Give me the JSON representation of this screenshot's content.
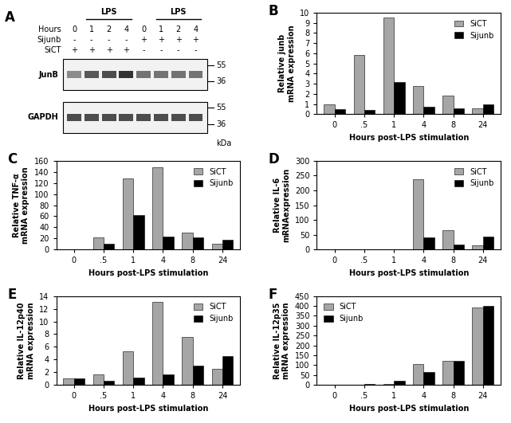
{
  "blot": {
    "panel_label": "A",
    "treatment": "LPS",
    "rows": [
      {
        "label": "Hours",
        "values": [
          "0",
          "1",
          "2",
          "4",
          "0",
          "1",
          "2",
          "4"
        ]
      },
      {
        "label": "Sijunb",
        "values": [
          "-",
          "-",
          "-",
          "-",
          "+",
          "+",
          "+",
          "+"
        ]
      },
      {
        "label": "SiCT",
        "values": [
          "+",
          "+",
          "+",
          "+",
          "-",
          "-",
          "-",
          "-"
        ]
      }
    ],
    "bands": [
      {
        "label": "JunB",
        "markers": [
          55,
          36
        ]
      },
      {
        "label": "GAPDH",
        "markers": [
          55,
          36
        ]
      }
    ],
    "unit": "kDa"
  },
  "chart_data": [
    {
      "type": "bar",
      "panel_label": "B",
      "y_label": "Relative junb\nmRNA expression",
      "x_label": "Hours post-LPS stimulation",
      "categories": [
        "0",
        ".5",
        "1",
        "4",
        "8",
        "24"
      ],
      "series": [
        {
          "name": "SiCT",
          "color": "#a6a6a6",
          "values": [
            1.0,
            5.8,
            9.5,
            2.8,
            1.8,
            0.6
          ]
        },
        {
          "name": "Sijunb",
          "color": "#000000",
          "values": [
            0.5,
            0.4,
            3.2,
            0.7,
            0.6,
            1.0
          ]
        }
      ],
      "ylim": [
        0,
        10
      ],
      "yticks": [
        0,
        1,
        2,
        3,
        4,
        5,
        6,
        7,
        8,
        9,
        10
      ],
      "legend": "upper right"
    },
    {
      "type": "bar",
      "panel_label": "C",
      "y_label": "Relative TNF-α\nmRNA expression",
      "x_label": "Hours post-LPS stimulation",
      "categories": [
        "0",
        ".5",
        "1",
        "4",
        "8",
        "24"
      ],
      "series": [
        {
          "name": "SiCT",
          "color": "#a6a6a6",
          "values": [
            1,
            22,
            128,
            148,
            30,
            10
          ]
        },
        {
          "name": "Sijunb",
          "color": "#000000",
          "values": [
            1,
            10,
            62,
            24,
            22,
            18
          ]
        }
      ],
      "ylim": [
        0,
        160
      ],
      "yticks": [
        0,
        20,
        40,
        60,
        80,
        100,
        120,
        140,
        160
      ],
      "legend": "upper right"
    },
    {
      "type": "bar",
      "panel_label": "D",
      "y_label": "Relative IL-6\nmRNAexpression",
      "x_label": "Hours post-LPS stimulation",
      "categories": [
        "0",
        ".5",
        "1",
        "4",
        "8",
        "24"
      ],
      "series": [
        {
          "name": "SiCT",
          "color": "#a6a6a6",
          "values": [
            0.5,
            1,
            1,
            238,
            65,
            15
          ]
        },
        {
          "name": "Sijunb",
          "color": "#000000",
          "values": [
            0.5,
            0.5,
            0.5,
            40,
            18,
            45
          ]
        }
      ],
      "ylim": [
        0,
        300
      ],
      "yticks": [
        0,
        50,
        100,
        150,
        200,
        250,
        300
      ],
      "legend": "upper right"
    },
    {
      "type": "bar",
      "panel_label": "E",
      "y_label": "Relative IL-12p40\nmRNA expression",
      "x_label": "Hours post-LPS stimulation",
      "categories": [
        "0",
        ".5",
        "1",
        "4",
        "8",
        "24"
      ],
      "series": [
        {
          "name": "SiCT",
          "color": "#a6a6a6",
          "values": [
            1.0,
            1.6,
            5.3,
            13.1,
            7.5,
            2.5
          ]
        },
        {
          "name": "Sijunb",
          "color": "#000000",
          "values": [
            1.0,
            0.7,
            1.2,
            1.6,
            3.0,
            4.5
          ]
        }
      ],
      "ylim": [
        0,
        14
      ],
      "yticks": [
        0,
        2,
        4,
        6,
        8,
        10,
        12,
        14
      ],
      "legend": "upper right"
    },
    {
      "type": "bar",
      "panel_label": "F",
      "y_label": "Relative IL-12p35\nmRNA expression",
      "x_label": "Hours post-LPS stimulation",
      "categories": [
        "0",
        ".5",
        "1",
        "4",
        "8",
        "24"
      ],
      "series": [
        {
          "name": "SiCT",
          "color": "#a6a6a6",
          "values": [
            1,
            2,
            5,
            105,
            120,
            392
          ]
        },
        {
          "name": "Sijunb",
          "color": "#000000",
          "values": [
            1,
            3,
            20,
            65,
            120,
            400
          ]
        }
      ],
      "ylim": [
        0,
        450
      ],
      "yticks": [
        0,
        50,
        100,
        150,
        200,
        250,
        300,
        350,
        400,
        450
      ],
      "legend": "upper left"
    }
  ]
}
